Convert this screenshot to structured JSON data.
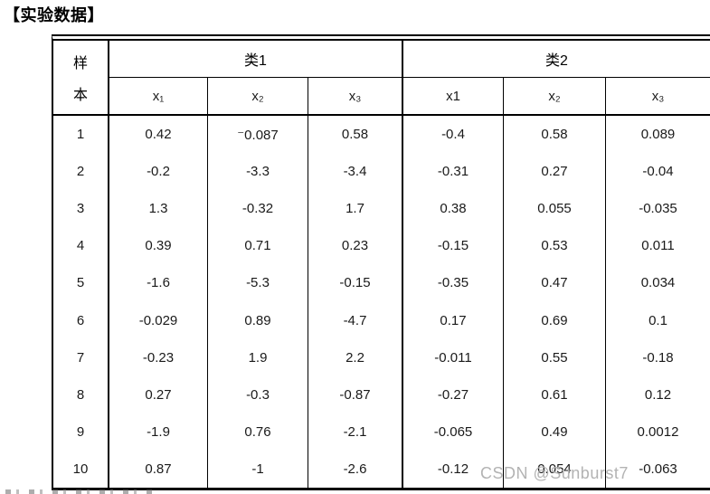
{
  "title": "【实验数据】",
  "watermark": "CSDN @Sunburst7",
  "table": {
    "sample_header": {
      "line1": "样",
      "line2": "本"
    },
    "group1_label": "类1",
    "group2_label": "类2",
    "col_headers": [
      "x₁",
      "x₂",
      "x₃",
      "x1",
      "x₂",
      "x₃"
    ],
    "rows": [
      {
        "id": "1",
        "values": [
          "0.42",
          "⁻0.087",
          "0.58",
          "-0.4",
          "0.58",
          "0.089"
        ]
      },
      {
        "id": "2",
        "values": [
          "-0.2",
          "-3.3",
          "-3.4",
          "-0.31",
          "0.27",
          "-0.04"
        ]
      },
      {
        "id": "3",
        "values": [
          "1.3",
          "-0.32",
          "1.7",
          "0.38",
          "0.055",
          "-0.035"
        ]
      },
      {
        "id": "4",
        "values": [
          "0.39",
          "0.71",
          "0.23",
          "-0.15",
          "0.53",
          "0.011"
        ]
      },
      {
        "id": "5",
        "values": [
          "-1.6",
          "-5.3",
          "-0.15",
          "-0.35",
          "0.47",
          "0.034"
        ]
      },
      {
        "id": "6",
        "values": [
          "-0.029",
          "0.89",
          "-4.7",
          "0.17",
          "0.69",
          "0.1"
        ]
      },
      {
        "id": "7",
        "values": [
          "-0.23",
          "1.9",
          "2.2",
          "-0.011",
          "0.55",
          "-0.18"
        ]
      },
      {
        "id": "8",
        "values": [
          "0.27",
          "-0.3",
          "-0.87",
          "-0.27",
          "0.61",
          "0.12"
        ]
      },
      {
        "id": "9",
        "values": [
          "-1.9",
          "0.76",
          "-2.1",
          "-0.065",
          "0.49",
          "0.0012"
        ]
      },
      {
        "id": "10",
        "values": [
          "0.87",
          "-1",
          "-2.6",
          "-0.12",
          "0.054",
          "-0.063"
        ]
      }
    ]
  },
  "colors": {
    "border": "#000000",
    "text": "#1a1a1a",
    "watermark": "#b3b3b3"
  }
}
